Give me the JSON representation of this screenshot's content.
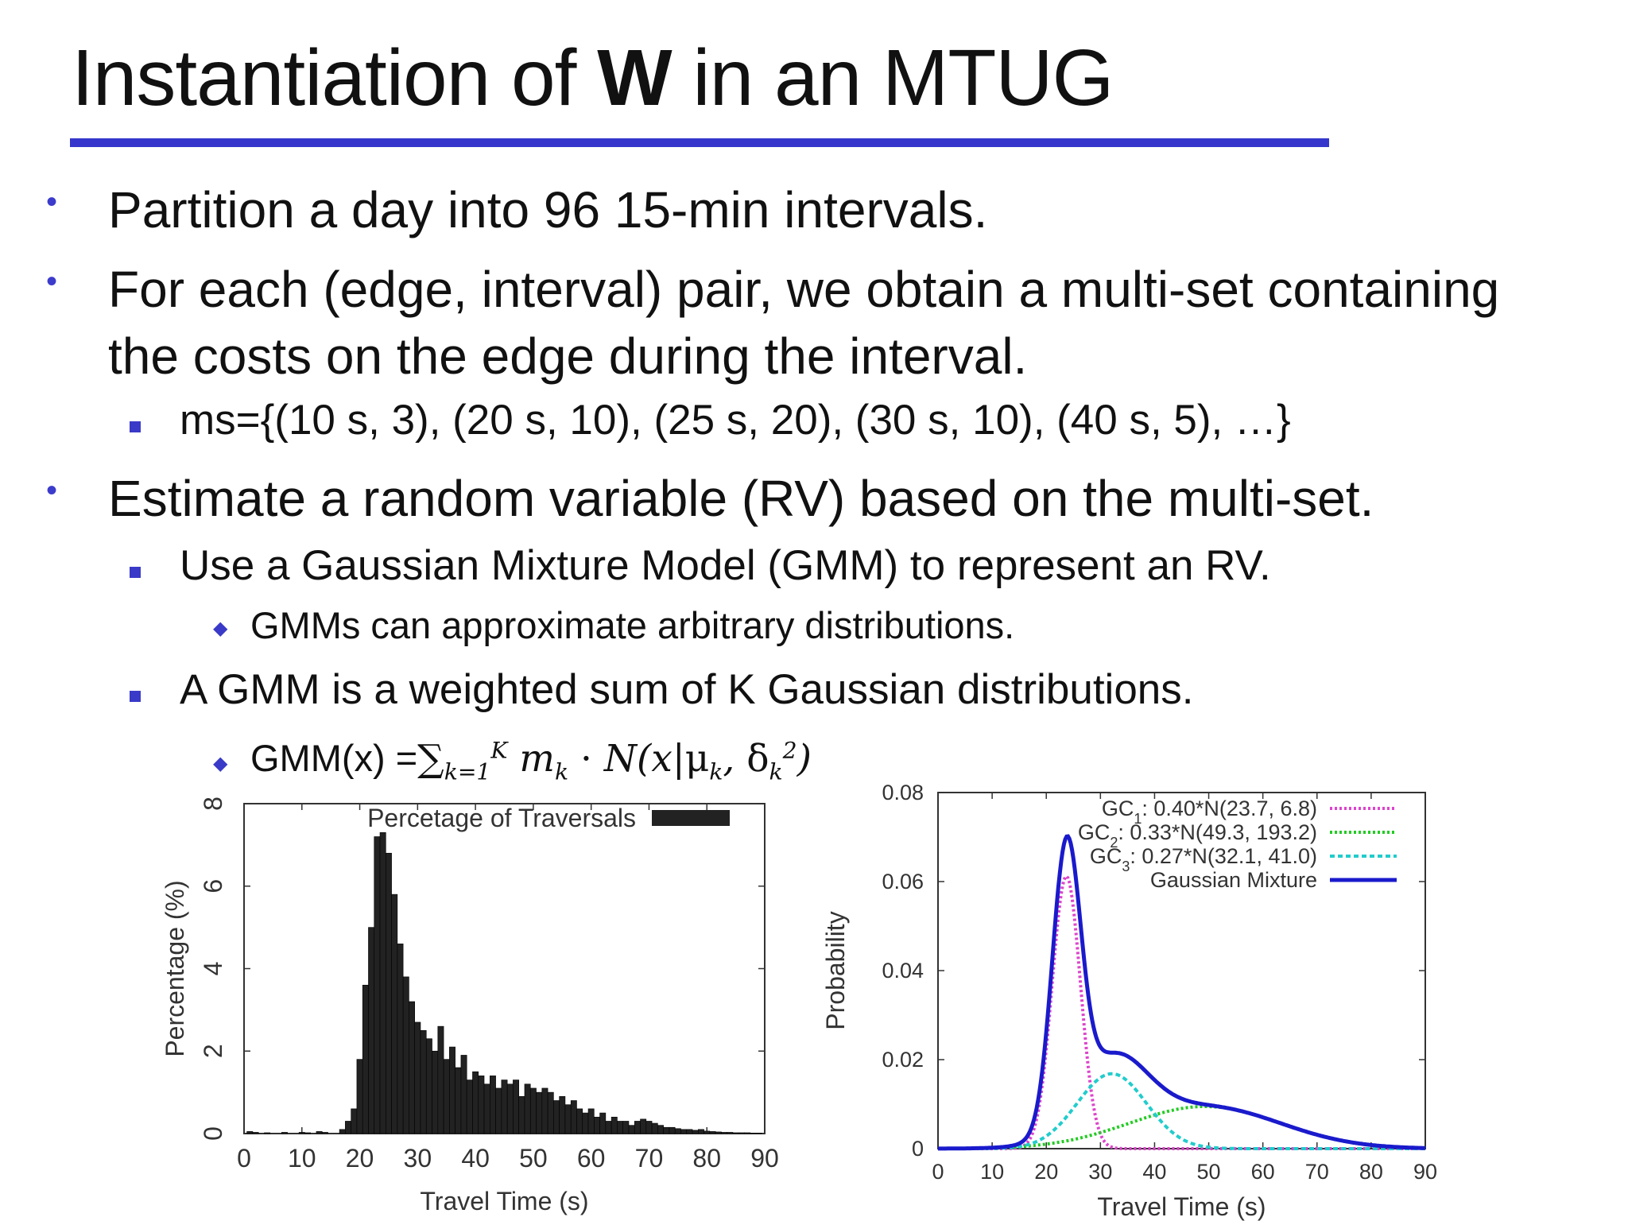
{
  "slide": {
    "title_part1": "Instantiation of ",
    "title_bold": "W",
    "title_part2": " in an MTUG",
    "bullets": {
      "b1": "Partition a day into 96 15-min intervals.",
      "b2_line1": "For each (edge, interval) pair, we obtain a multi-set containing",
      "b2_line2": "the costs on the edge during the interval.",
      "b2_sub": "ms={(10 s, 3), (20 s, 10), (25 s, 20), (30 s, 10), (40 s, 5), …}",
      "b3": "Estimate a random variable (RV) based on the multi-set.",
      "b3_sub1": "Use a Gaussian Mixture Model (GMM) to represent an RV.",
      "b3_sub1_sub": "GMMs can approximate arbitrary distributions.",
      "b3_sub2": "A GMM is a weighted sum of K Gaussian distributions.",
      "formula_prefix": "GMM(x) ="
    }
  },
  "chart_data": [
    {
      "type": "bar",
      "xlabel": "Travel Time (s)",
      "ylabel": "Percentage (%)",
      "legend": "Percetage of Traversals",
      "legend_position": "top-right",
      "xlim": [
        0,
        90
      ],
      "ylim": [
        0,
        8
      ],
      "xticks": [
        0,
        10,
        20,
        30,
        40,
        50,
        60,
        70,
        80,
        90
      ],
      "yticks": [
        0,
        2,
        4,
        6,
        8
      ],
      "bar_width": 1,
      "color": "#222222",
      "x": [
        1,
        2,
        3,
        4,
        5,
        6,
        7,
        8,
        9,
        10,
        11,
        12,
        13,
        14,
        15,
        16,
        17,
        18,
        19,
        20,
        21,
        22,
        23,
        24,
        25,
        26,
        27,
        28,
        29,
        30,
        31,
        32,
        33,
        34,
        35,
        36,
        37,
        38,
        39,
        40,
        41,
        42,
        43,
        44,
        45,
        46,
        47,
        48,
        49,
        50,
        51,
        52,
        53,
        54,
        55,
        56,
        57,
        58,
        59,
        60,
        61,
        62,
        63,
        64,
        65,
        66,
        67,
        68,
        69,
        70,
        71,
        72,
        73,
        74,
        75,
        76,
        77,
        78,
        79,
        80,
        81,
        82,
        83,
        84,
        85,
        86,
        87,
        88,
        89
      ],
      "values": [
        0.05,
        0.03,
        0,
        0.02,
        0,
        0,
        0.03,
        0,
        0,
        0.03,
        0.02,
        0,
        0.05,
        0.03,
        0,
        0,
        0.1,
        0.3,
        0.6,
        1.8,
        3.6,
        5.0,
        7.2,
        7.3,
        6.8,
        5.8,
        4.6,
        3.8,
        3.2,
        2.7,
        2.5,
        2.3,
        2.0,
        2.6,
        1.8,
        2.1,
        1.6,
        1.9,
        1.3,
        1.5,
        1.4,
        1.2,
        1.4,
        1.1,
        1.3,
        1.2,
        1.3,
        0.9,
        1.2,
        1.1,
        1.0,
        1.1,
        1.0,
        0.8,
        0.9,
        0.7,
        0.8,
        0.6,
        0.5,
        0.6,
        0.4,
        0.5,
        0.3,
        0.4,
        0.3,
        0.3,
        0.2,
        0.3,
        0.35,
        0.3,
        0.25,
        0.2,
        0.15,
        0.15,
        0.12,
        0.1,
        0.1,
        0.08,
        0.1,
        0.06,
        0.05,
        0.04,
        0.03,
        0.03,
        0.02,
        0.02,
        0.02,
        0.01,
        0.01
      ]
    },
    {
      "type": "line",
      "xlabel": "Travel Time (s)",
      "ylabel": "Probability",
      "legend_position": "top-right",
      "xlim": [
        0,
        90
      ],
      "ylim": [
        0,
        0.08
      ],
      "xticks": [
        0,
        10,
        20,
        30,
        40,
        50,
        60,
        70,
        80,
        90
      ],
      "yticks": [
        0,
        0.02,
        0.04,
        0.06,
        0.08
      ],
      "ytick_labels": [
        "0",
        "0.02",
        "0.04",
        "0.06",
        "0.08"
      ],
      "series": [
        {
          "name": "GC1: 0.40*N(23.7, 6.8)",
          "legend_main": "GC",
          "legend_sub": "1",
          "legend_rest": ": 0.40*N(23.7, 6.8)",
          "weight": 0.4,
          "mean": 23.7,
          "variance": 6.8,
          "color": "#dd44cc",
          "dash": "3,3"
        },
        {
          "name": "GC2: 0.33*N(49.3, 193.2)",
          "legend_main": "GC",
          "legend_sub": "2",
          "legend_rest": ": 0.33*N(49.3, 193.2)",
          "weight": 0.33,
          "mean": 49.3,
          "variance": 193.2,
          "color": "#22cc22",
          "dash": "3,3"
        },
        {
          "name": "GC3: 0.27*N(32.1, 41.0)",
          "legend_main": "GC",
          "legend_sub": "3",
          "legend_rest": ": 0.27*N(32.1, 41.0)",
          "weight": 0.27,
          "mean": 32.1,
          "variance": 41.0,
          "color": "#22cccc",
          "dash": "6,4"
        },
        {
          "name": "Gaussian Mixture",
          "legend_main": "Gaussian Mixture",
          "legend_sub": "",
          "legend_rest": "",
          "color": "#1a1acc",
          "dash": ""
        }
      ]
    }
  ]
}
